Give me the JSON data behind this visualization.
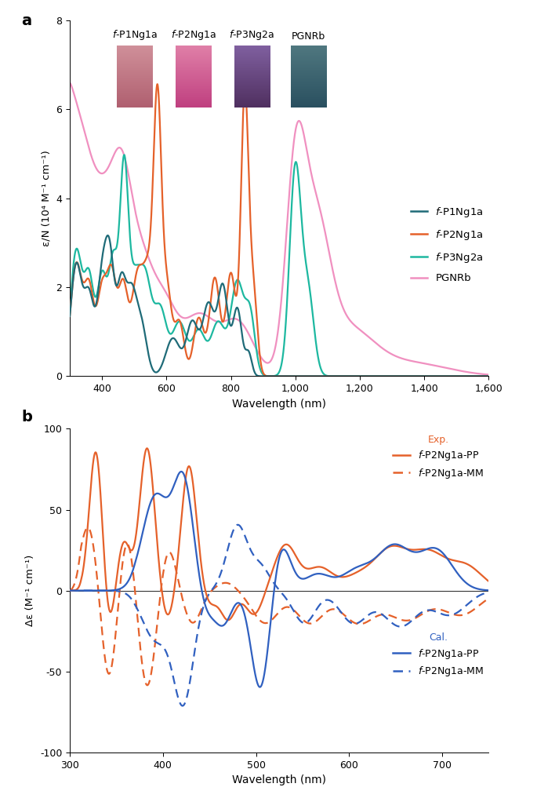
{
  "panel_a": {
    "xlabel": "Wavelength (nm)",
    "ylabel": "ε/N (10⁴ M⁻¹ cm⁻¹)",
    "xlim": [
      300,
      1600
    ],
    "ylim": [
      0,
      8
    ],
    "xticks": [
      400,
      600,
      800,
      1000,
      1200,
      1400,
      1600
    ],
    "xticklabels": [
      "400",
      "600",
      "800",
      "1,000",
      "1,200",
      "1,400",
      "1,600"
    ],
    "yticks": [
      0,
      2,
      4,
      6,
      8
    ],
    "colors": {
      "P1Ng1a": "#1F6B78",
      "P2Ng1a": "#E5612A",
      "P3Ng2a": "#1DB8A0",
      "PGNRb": "#F090C0"
    }
  },
  "panel_b": {
    "xlabel": "Wavelength (nm)",
    "ylabel": "Δε (M⁻¹ cm⁻¹)",
    "xlim": [
      300,
      750
    ],
    "ylim": [
      -100,
      100
    ],
    "xticks": [
      300,
      400,
      500,
      600,
      700
    ],
    "xticklabels": [
      "300",
      "400",
      "500",
      "600",
      "700"
    ],
    "yticks": [
      -100,
      -50,
      0,
      50,
      100
    ],
    "colors": {
      "exp": "#E5612A",
      "cal": "#3060C0"
    }
  }
}
